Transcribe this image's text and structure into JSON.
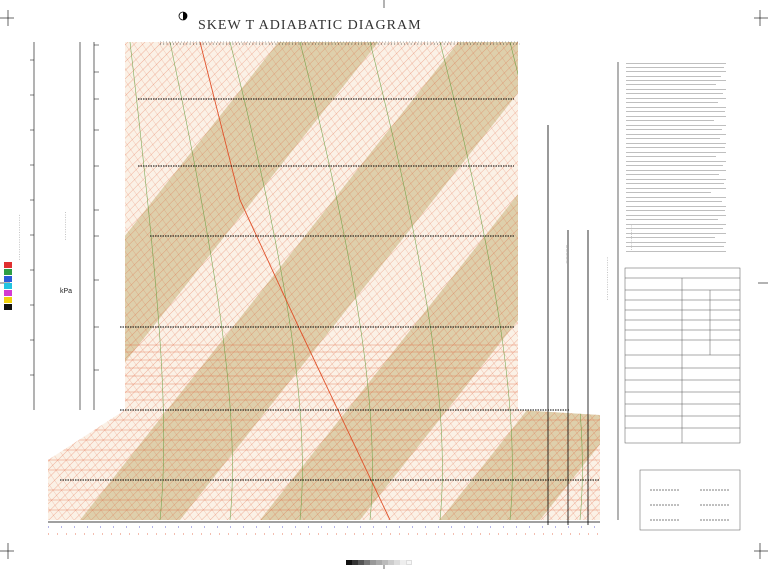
{
  "diagram": {
    "title": "SKEW  T  ADIABATIC DIAGRAM",
    "unit_label": "kPa"
  },
  "colors": {
    "grid_red": "#e0532c",
    "band_olive": "#c6b27a",
    "band_light": "#f6eddc",
    "isobar": "#000000",
    "moist_green": "#5f9a3a"
  },
  "icons": {
    "crosshair": "crosshair-icon",
    "compass": "compass-icon"
  }
}
